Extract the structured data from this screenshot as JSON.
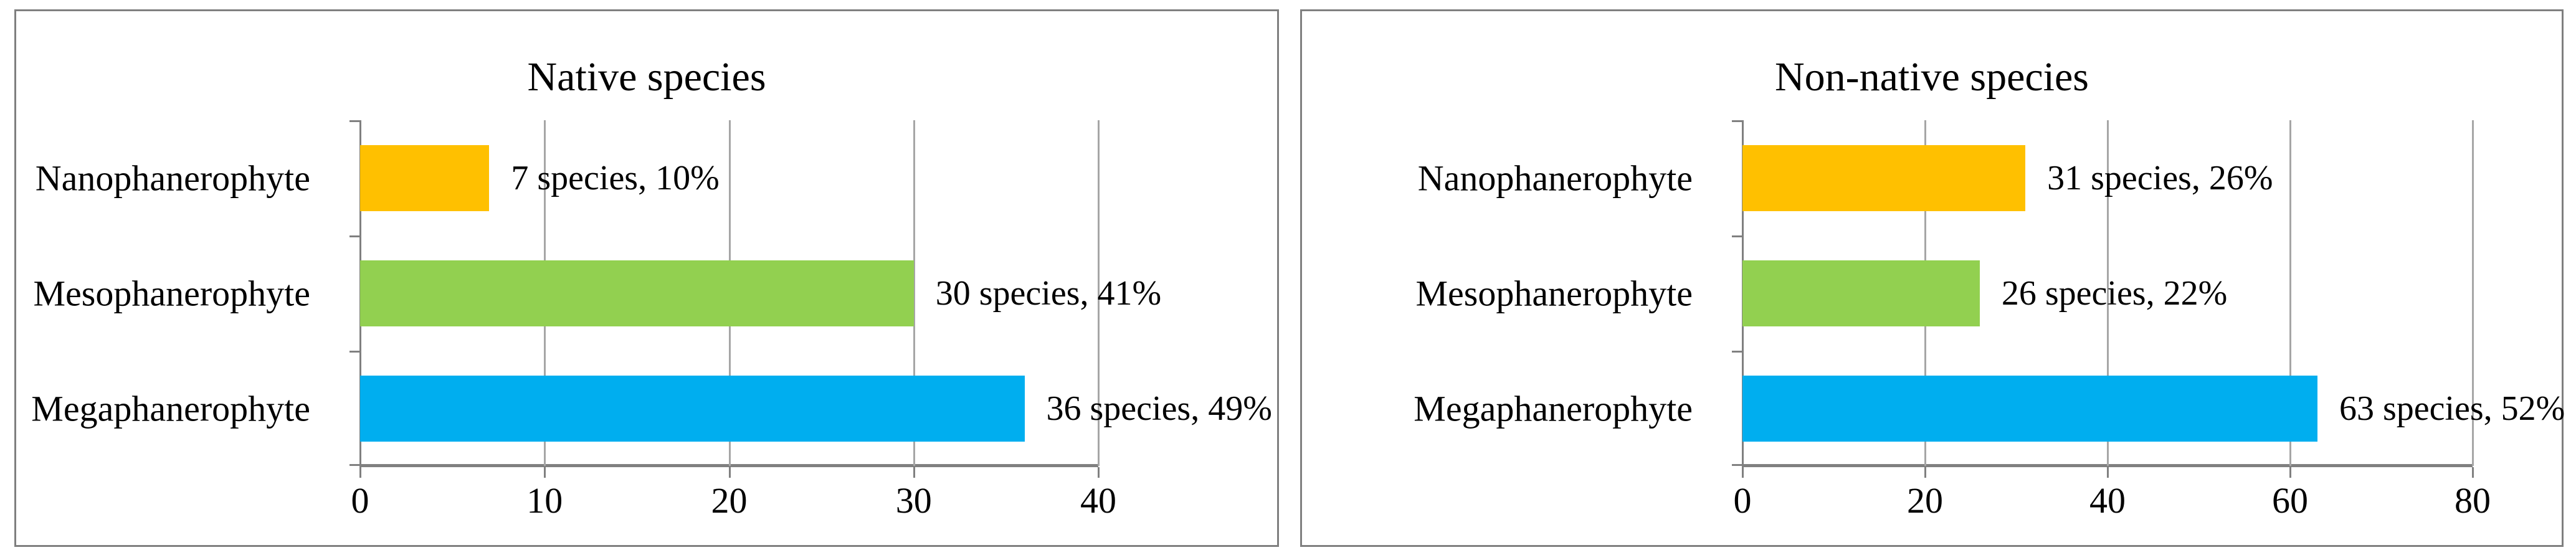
{
  "colors": {
    "background": "#ffffff",
    "panel_border": "#7f7f7f",
    "gridline": "#a6a6a6",
    "axis": "#808080",
    "text": "#000000",
    "bar_nanophanerophyte": "#FFC000",
    "bar_mesophanerophyte": "#92D050",
    "bar_megaphanerophyte": "#00AEEF"
  },
  "chart_data": [
    {
      "type": "bar",
      "orientation": "horizontal",
      "title": "Native species",
      "categories": [
        "Nanophanerophyte",
        "Mesophanerophyte",
        "Megaphanerophyte"
      ],
      "values": [
        7,
        30,
        36
      ],
      "data_labels": [
        "7 species, 10%",
        "30 species, 41%",
        "36 species, 49%"
      ],
      "bar_colors": [
        "#FFC000",
        "#92D050",
        "#00AEEF"
      ],
      "xlim": [
        0,
        40
      ],
      "xticks": [
        0,
        10,
        20,
        30,
        40
      ],
      "grid": true,
      "legend": "none",
      "xlabel": "",
      "ylabel": ""
    },
    {
      "type": "bar",
      "orientation": "horizontal",
      "title": "Non-native species",
      "categories": [
        "Nanophanerophyte",
        "Mesophanerophyte",
        "Megaphanerophyte"
      ],
      "values": [
        31,
        26,
        63
      ],
      "data_labels": [
        "31 species, 26%",
        "26 species, 22%",
        "63 species, 52%"
      ],
      "bar_colors": [
        "#FFC000",
        "#92D050",
        "#00AEEF"
      ],
      "xlim": [
        0,
        80
      ],
      "xticks": [
        0,
        20,
        40,
        60,
        80
      ],
      "grid": true,
      "legend": "none",
      "xlabel": "",
      "ylabel": ""
    }
  ]
}
